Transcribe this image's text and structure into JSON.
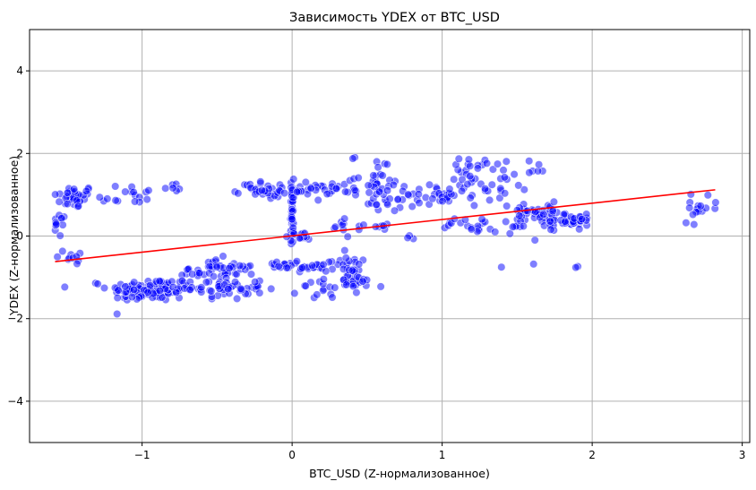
{
  "chart_data": {
    "type": "scatter",
    "title": "Зависимость YDEX от BTC_USD",
    "xlabel": "BTC_USD (Z-нормализованное)",
    "ylabel": "YDEX (Z-нормализованное)",
    "xlim": [
      -1.75,
      3.05
    ],
    "ylim": [
      -5,
      5
    ],
    "xticks": [
      -1,
      0,
      1,
      2,
      3
    ],
    "xtick_labels": [
      "−1",
      "0",
      "1",
      "2",
      "3"
    ],
    "yticks": [
      -4,
      -2,
      0,
      2,
      4
    ],
    "ytick_labels": [
      "−4",
      "−2",
      "0",
      "2",
      "4"
    ],
    "grid": true,
    "colors": {
      "points": "#0000ff",
      "point_edge": "#ffffff",
      "line": "#ff0000",
      "grid": "#b0b0b0"
    },
    "regression_line": {
      "x": [
        -1.58,
        2.82
      ],
      "y": [
        -0.62,
        1.12
      ]
    },
    "clusters": [
      {
        "cx": -1.45,
        "cy": 0.95,
        "sx": 0.07,
        "sy": 0.14,
        "n": 40
      },
      {
        "cx": -1.55,
        "cy": 0.25,
        "sx": 0.02,
        "sy": 0.15,
        "n": 12
      },
      {
        "cx": -1.45,
        "cy": -0.5,
        "sx": 0.06,
        "sy": 0.1,
        "n": 10
      },
      {
        "cx": -1.1,
        "cy": 1.0,
        "sx": 0.1,
        "sy": 0.15,
        "n": 16
      },
      {
        "cx": -0.8,
        "cy": 1.18,
        "sx": 0.04,
        "sy": 0.05,
        "n": 6
      },
      {
        "cx": -0.95,
        "cy": -1.3,
        "sx": 0.14,
        "sy": 0.14,
        "n": 110
      },
      {
        "cx": -0.55,
        "cy": -0.85,
        "sx": 0.1,
        "sy": 0.15,
        "n": 35
      },
      {
        "cx": -0.45,
        "cy": -1.25,
        "sx": 0.13,
        "sy": 0.14,
        "n": 55
      },
      {
        "cx": -0.35,
        "cy": -0.75,
        "sx": 0.06,
        "sy": 0.06,
        "n": 12
      },
      {
        "cx": -0.3,
        "cy": 1.15,
        "sx": 0.08,
        "sy": 0.05,
        "n": 10
      },
      {
        "cx": -0.15,
        "cy": 1.1,
        "sx": 0.07,
        "sy": 0.12,
        "n": 22
      },
      {
        "cx": 0.0,
        "cy": 0.6,
        "sx": 0.005,
        "sy": 0.4,
        "n": 40
      },
      {
        "cx": 0.1,
        "cy": 1.1,
        "sx": 0.08,
        "sy": 0.08,
        "n": 20
      },
      {
        "cx": 0.05,
        "cy": 0.0,
        "sx": 0.05,
        "sy": 0.05,
        "n": 12
      },
      {
        "cx": -0.05,
        "cy": -0.7,
        "sx": 0.07,
        "sy": 0.05,
        "n": 14
      },
      {
        "cx": 0.1,
        "cy": -0.75,
        "sx": 0.06,
        "sy": 0.05,
        "n": 14
      },
      {
        "cx": 0.3,
        "cy": -0.7,
        "sx": 0.08,
        "sy": 0.06,
        "n": 16
      },
      {
        "cx": 0.25,
        "cy": -1.3,
        "sx": 0.1,
        "sy": 0.12,
        "n": 18
      },
      {
        "cx": 0.4,
        "cy": -0.9,
        "sx": 0.06,
        "sy": 0.2,
        "n": 20
      },
      {
        "cx": 0.45,
        "cy": -1.2,
        "sx": 0.08,
        "sy": 0.1,
        "n": 10
      },
      {
        "cx": 0.35,
        "cy": 1.1,
        "sx": 0.08,
        "sy": 0.12,
        "n": 14
      },
      {
        "cx": 0.35,
        "cy": 0.2,
        "sx": 0.05,
        "sy": 0.2,
        "n": 10
      },
      {
        "cx": 0.55,
        "cy": 1.55,
        "sx": 0.08,
        "sy": 0.2,
        "n": 18
      },
      {
        "cx": 0.65,
        "cy": 0.8,
        "sx": 0.08,
        "sy": 0.1,
        "n": 18
      },
      {
        "cx": 0.6,
        "cy": 1.15,
        "sx": 0.07,
        "sy": 0.1,
        "n": 14
      },
      {
        "cx": 0.55,
        "cy": 0.25,
        "sx": 0.05,
        "sy": 0.05,
        "n": 8
      },
      {
        "cx": 0.9,
        "cy": 1.0,
        "sx": 0.08,
        "sy": 0.12,
        "n": 16
      },
      {
        "cx": 0.75,
        "cy": -0.05,
        "sx": 0.04,
        "sy": 0.04,
        "n": 3
      },
      {
        "cx": 1.05,
        "cy": 1.0,
        "sx": 0.05,
        "sy": 0.1,
        "n": 12
      },
      {
        "cx": 1.05,
        "cy": 0.25,
        "sx": 0.05,
        "sy": 0.05,
        "n": 4
      },
      {
        "cx": 1.2,
        "cy": 1.4,
        "sx": 0.06,
        "sy": 0.3,
        "n": 28
      },
      {
        "cx": 1.25,
        "cy": 0.25,
        "sx": 0.08,
        "sy": 0.1,
        "n": 14
      },
      {
        "cx": 1.3,
        "cy": 1.75,
        "sx": 0.1,
        "sy": 0.08,
        "n": 8
      },
      {
        "cx": 1.4,
        "cy": 1.1,
        "sx": 0.06,
        "sy": 0.25,
        "n": 12
      },
      {
        "cx": 1.45,
        "cy": 0.2,
        "sx": 0.05,
        "sy": 0.12,
        "n": 8
      },
      {
        "cx": 1.55,
        "cy": 0.5,
        "sx": 0.05,
        "sy": 0.2,
        "n": 20
      },
      {
        "cx": 1.6,
        "cy": 1.6,
        "sx": 0.05,
        "sy": 0.15,
        "n": 6
      },
      {
        "cx": 1.7,
        "cy": 0.5,
        "sx": 0.06,
        "sy": 0.15,
        "n": 28
      },
      {
        "cx": 1.85,
        "cy": 0.35,
        "sx": 0.06,
        "sy": 0.1,
        "n": 26
      },
      {
        "cx": 1.95,
        "cy": 0.45,
        "sx": 0.03,
        "sy": 0.05,
        "n": 8
      },
      {
        "cx": 1.9,
        "cy": -0.75,
        "sx": 0.01,
        "sy": 0.01,
        "n": 2
      },
      {
        "cx": 1.38,
        "cy": -0.75,
        "sx": 0.01,
        "sy": 0.01,
        "n": 1
      },
      {
        "cx": 1.62,
        "cy": -0.7,
        "sx": 0.01,
        "sy": 0.01,
        "n": 1
      },
      {
        "cx": 2.72,
        "cy": 0.65,
        "sx": 0.06,
        "sy": 0.15,
        "n": 16
      },
      {
        "cx": 2.8,
        "cy": 0.82,
        "sx": 0.01,
        "sy": 0.01,
        "n": 1
      }
    ]
  }
}
